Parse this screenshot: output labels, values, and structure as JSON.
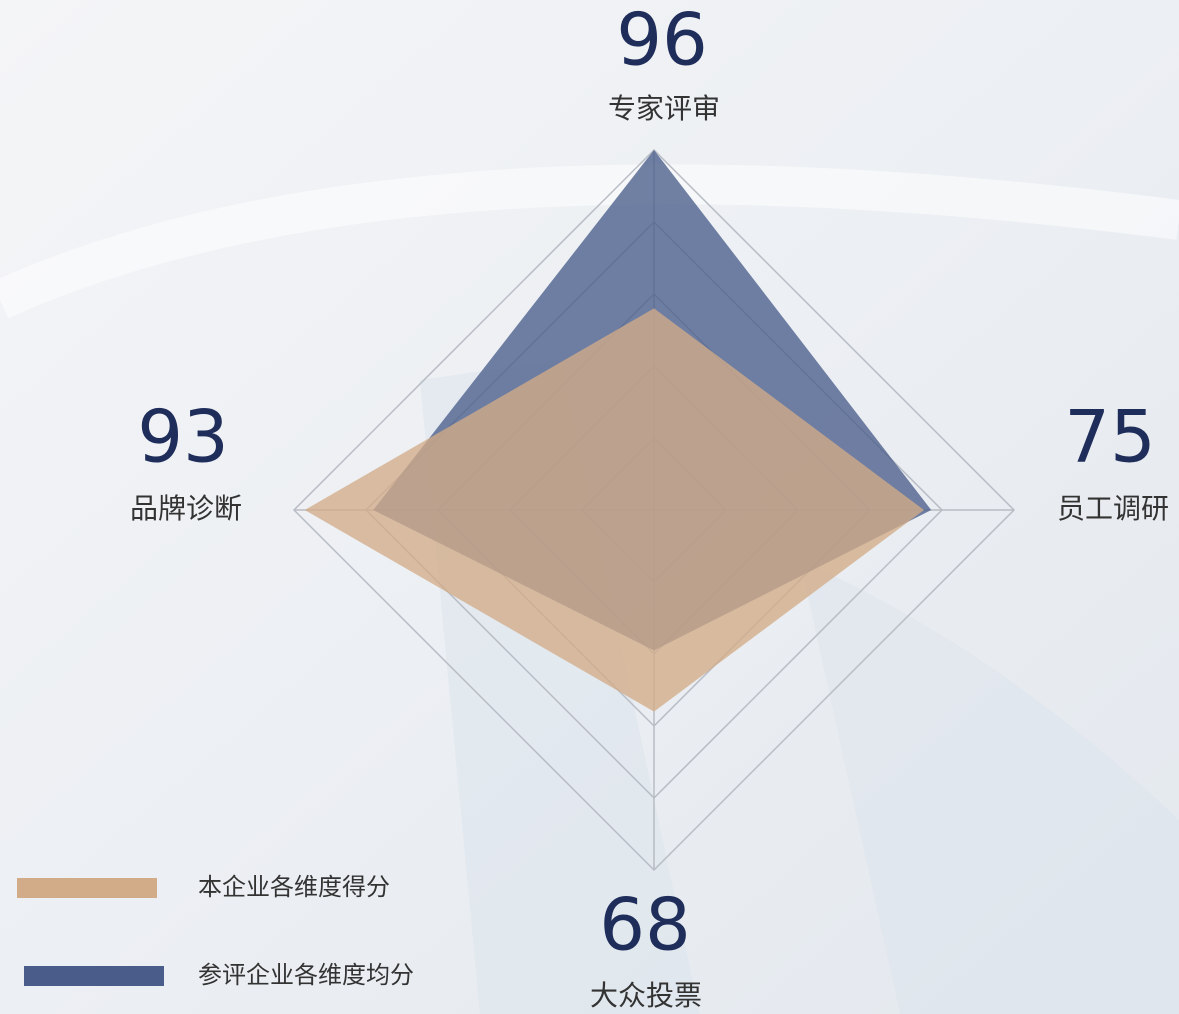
{
  "chart_data": {
    "type": "radar",
    "categories": [
      "专家评审",
      "员工调研",
      "大众投票",
      "品牌诊断"
    ],
    "scores": [
      96,
      75,
      68,
      93
    ],
    "rlim": [
      0,
      100
    ],
    "rticks": [
      20,
      40,
      60,
      80,
      100
    ],
    "grid": true,
    "series": [
      {
        "name": "参评企业各维度均分",
        "color": "#4a5d8a",
        "values": [
          100,
          77,
          39,
          78
        ]
      },
      {
        "name": "本企业各维度得分",
        "color": "#d2ac88",
        "values": [
          56,
          75,
          56,
          97
        ]
      }
    ],
    "legend_order": [
      1,
      0
    ]
  }
}
